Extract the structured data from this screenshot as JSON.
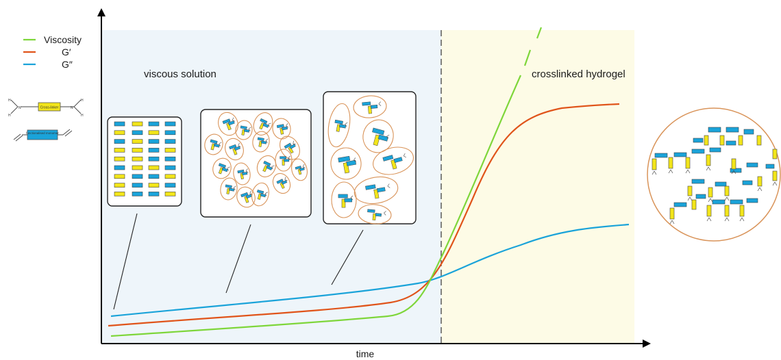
{
  "legend": {
    "items": [
      {
        "label": "Viscosity",
        "color": "#7ed63a"
      },
      {
        "label": "G′",
        "color": "#e0541a"
      },
      {
        "label": "G″",
        "color": "#1aa3d9"
      }
    ]
  },
  "regions": {
    "solution_label": "viscous solution",
    "hydrogel_label": "crosslinked hydrogel",
    "solution_color": "#eef5fa",
    "hydrogel_color": "#fdfbe6"
  },
  "axes": {
    "xlabel": "time"
  },
  "key": {
    "crosslinker_label": "Cross-linker",
    "backbone_label": "functionalised monomer",
    "crosslinker_color": "#f2e51a",
    "backbone_color": "#1aa3d9"
  },
  "colors": {
    "yellow_block": "#f2e51a",
    "blue_block": "#1aa3d9",
    "cluster_outline": "#d9945a",
    "frame": "#222222"
  }
}
